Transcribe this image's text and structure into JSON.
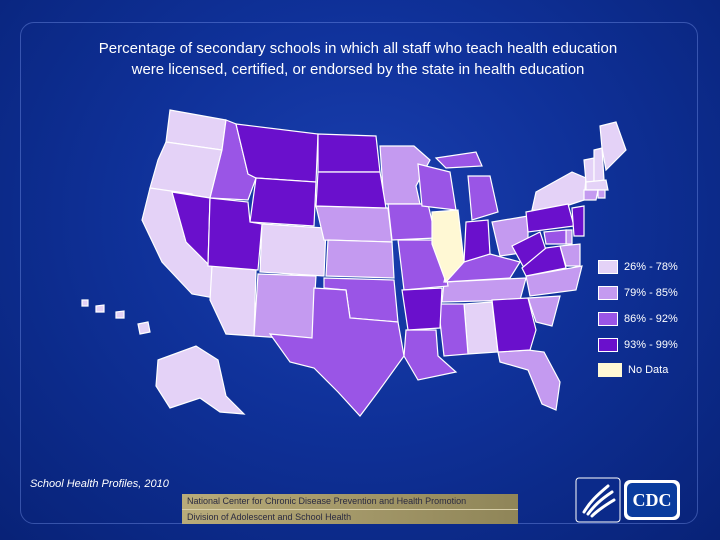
{
  "title": {
    "line1": "Percentage of secondary schools in which all staff who teach health education",
    "line2": "were licensed, certified, or endorsed by the state in health education"
  },
  "colors": {
    "background": "#0f3199",
    "c1": "#e4d2f7",
    "c2": "#c49af0",
    "c3": "#9a55e6",
    "c4": "#6a10cc",
    "nodata": "#fff8d4"
  },
  "legend": [
    {
      "label": "26% - 78%",
      "color": "#e4d2f7"
    },
    {
      "label": "79% - 85%",
      "color": "#c49af0"
    },
    {
      "label": "86% - 92%",
      "color": "#9a55e6"
    },
    {
      "label": "93% - 99%",
      "color": "#6a10cc"
    }
  ],
  "nodata_label": "No Data",
  "source": "School Health Profiles, 2010",
  "footer": {
    "line1": "National Center for Chronic Disease Prevention and Health Promotion",
    "line2": "Division of Adolescent and School Health"
  },
  "logo": {
    "text": "CDC",
    "icon": "hhs-eagle-icon"
  }
}
